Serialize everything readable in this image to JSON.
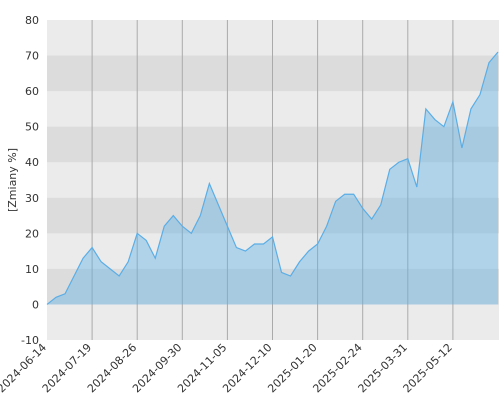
{
  "chart_data": {
    "type": "area",
    "y_label": "[Zmiany %]",
    "categories": [
      "2024-06-14",
      null,
      null,
      null,
      null,
      "2024-07-19",
      null,
      null,
      null,
      null,
      "2024-08-26",
      null,
      null,
      null,
      null,
      "2024-09-30",
      null,
      null,
      null,
      null,
      "2024-11-05",
      null,
      null,
      null,
      null,
      "2024-12-10",
      null,
      null,
      null,
      null,
      "2025-01-20",
      null,
      null,
      null,
      null,
      "2025-02-24",
      null,
      null,
      null,
      null,
      "2025-03-31",
      null,
      null,
      null,
      null,
      "2025-05-12",
      null,
      null,
      null,
      null,
      null
    ],
    "values": [
      0,
      2,
      3,
      8,
      13,
      16,
      12,
      10,
      8,
      12,
      20,
      18,
      13,
      22,
      25,
      22,
      20,
      25,
      34,
      28,
      22,
      16,
      15,
      17,
      17,
      19,
      9,
      8,
      12,
      15,
      17,
      22,
      29,
      31,
      31,
      27,
      24,
      28,
      38,
      40,
      41,
      33,
      55,
      52,
      50,
      57,
      44,
      55,
      59,
      68,
      71
    ],
    "color": "#5aaee6",
    "ylim": [
      -10,
      80
    ],
    "yticks": [
      -10,
      0,
      10,
      20,
      30,
      40,
      50,
      60,
      70,
      80
    ],
    "grid": true
  }
}
